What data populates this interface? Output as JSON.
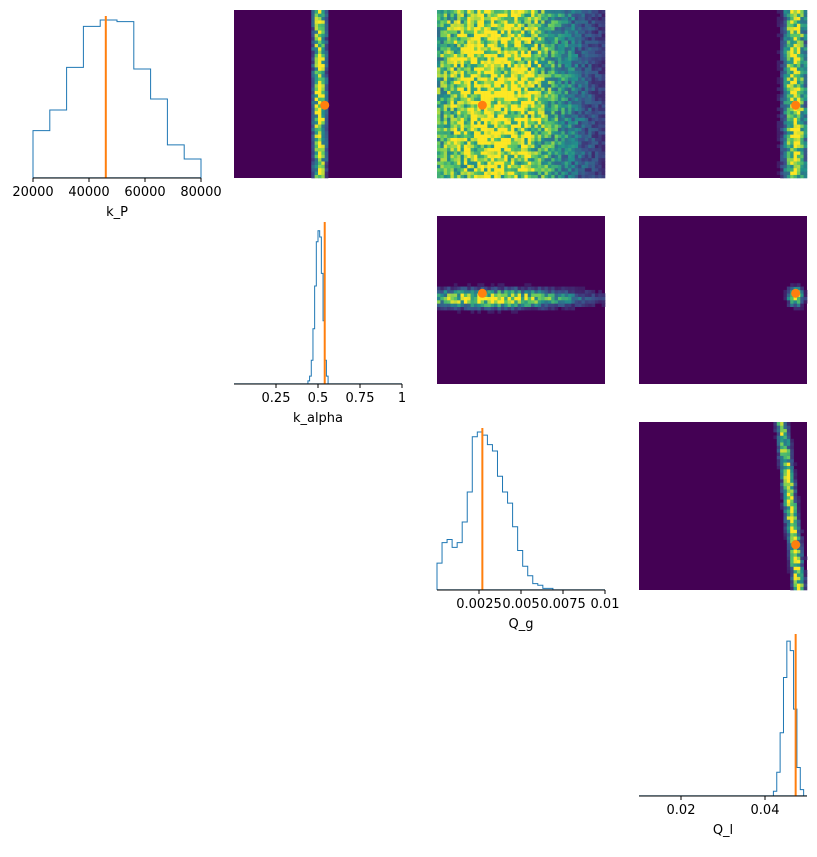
{
  "chart_data": {
    "type": "pairplot",
    "colors": {
      "hist_line": "#1f77b4",
      "truth": "#ff7f0e",
      "heat_bg": "#440154",
      "viridis": [
        "#440154",
        "#3b528b",
        "#21918c",
        "#5ec962",
        "#fde725"
      ]
    },
    "params": [
      {
        "name": "k_P",
        "xlabel": "k_P",
        "range": [
          20000,
          80000
        ],
        "ticks": [
          20000,
          40000,
          60000,
          80000
        ],
        "tick_labels": [
          "20000",
          "40000",
          "60000",
          "80000"
        ],
        "truth": 46000,
        "hist_edges": [
          20000,
          26000,
          32000,
          38000,
          44000,
          50000,
          56000,
          62000,
          68000,
          74000,
          80000
        ],
        "hist_counts": [
          0.3,
          0.43,
          0.7,
          0.96,
          1.0,
          0.99,
          0.69,
          0.5,
          0.21,
          0.12
        ]
      },
      {
        "name": "k_alpha",
        "xlabel": "k_alpha",
        "range": [
          0.0,
          1.0
        ],
        "ticks": [
          0.25,
          0.5,
          0.75,
          1.0
        ],
        "tick_labels": [
          "0.25",
          "0.5",
          "0.75",
          "1"
        ],
        "truth": 0.54,
        "hist_edges": [
          0.0,
          0.44,
          0.45,
          0.46,
          0.47,
          0.48,
          0.49,
          0.5,
          0.51,
          0.52,
          0.53,
          0.54,
          0.55,
          0.56,
          1.0
        ],
        "hist_counts": [
          0.0,
          0.02,
          0.05,
          0.15,
          0.35,
          0.62,
          0.9,
          0.97,
          0.93,
          0.7,
          0.4,
          0.15,
          0.05,
          0.0
        ]
      },
      {
        "name": "Q_g",
        "xlabel": "Q_g",
        "range": [
          0.0,
          0.01
        ],
        "ticks": [
          0.0025,
          0.005,
          0.0075,
          0.01
        ],
        "tick_labels": [
          "0.0025",
          "0.005",
          "0.0075",
          "0.01"
        ],
        "truth": 0.0027,
        "hist_edges": [
          0.0,
          0.0003,
          0.0006,
          0.0009,
          0.0012,
          0.0015,
          0.0018,
          0.0021,
          0.0024,
          0.0027,
          0.003,
          0.0033,
          0.0036,
          0.0039,
          0.0042,
          0.0045,
          0.0048,
          0.0051,
          0.0054,
          0.0057,
          0.006,
          0.0063,
          0.0066,
          0.0069,
          0.0072,
          0.0075,
          0.01
        ],
        "hist_counts": [
          0.17,
          0.3,
          0.32,
          0.27,
          0.3,
          0.43,
          0.62,
          0.97,
          1.0,
          0.98,
          0.92,
          0.88,
          0.72,
          0.62,
          0.55,
          0.4,
          0.25,
          0.15,
          0.09,
          0.04,
          0.03,
          0.01,
          0.01,
          0.0,
          0.0,
          0.0
        ]
      },
      {
        "name": "Q_l",
        "xlabel": "Q_l",
        "range": [
          0.01,
          0.05
        ],
        "ticks": [
          0.02,
          0.04
        ],
        "tick_labels": [
          "0.02",
          "0.04"
        ],
        "truth": 0.0473,
        "hist_edges": [
          0.01,
          0.042,
          0.0428,
          0.0436,
          0.0444,
          0.0452,
          0.046,
          0.0468,
          0.0476,
          0.0484,
          0.0492,
          0.05
        ],
        "hist_counts": [
          0.0,
          0.03,
          0.15,
          0.4,
          0.75,
          0.98,
          0.92,
          0.55,
          0.18,
          0.04,
          0.0
        ]
      }
    ],
    "pairs": [
      {
        "row": 0,
        "col": 1,
        "x_param": "k_alpha",
        "y_param": "k_P",
        "truth": [
          0.54,
          46000
        ],
        "ridge": "vertical",
        "center": [
          0.51,
          50000
        ],
        "spread": [
          0.025,
          60000
        ]
      },
      {
        "row": 0,
        "col": 2,
        "x_param": "Q_g",
        "y_param": "k_P",
        "truth": [
          0.0027,
          46000
        ],
        "ridge": "blob",
        "center": [
          0.0034,
          50000
        ],
        "spread": [
          0.0035,
          60000
        ]
      },
      {
        "row": 0,
        "col": 3,
        "x_param": "Q_l",
        "y_param": "k_P",
        "truth": [
          0.0473,
          46000
        ],
        "ridge": "vertical",
        "center": [
          0.0472,
          50000
        ],
        "spread": [
          0.0018,
          60000
        ]
      },
      {
        "row": 1,
        "col": 2,
        "x_param": "Q_g",
        "y_param": "k_alpha",
        "truth": [
          0.0027,
          0.54
        ],
        "ridge": "horizontal",
        "center": [
          0.0032,
          0.51
        ],
        "spread": [
          0.0035,
          0.035
        ]
      },
      {
        "row": 1,
        "col": 3,
        "x_param": "Q_l",
        "y_param": "k_alpha",
        "truth": [
          0.0473,
          0.54
        ],
        "ridge": "point",
        "center": [
          0.0473,
          0.52
        ],
        "spread": [
          0.0012,
          0.035
        ]
      },
      {
        "row": 2,
        "col": 3,
        "x_param": "Q_l",
        "y_param": "Q_g",
        "truth": [
          0.0473,
          0.0027
        ],
        "ridge": "diagonal",
        "center": [
          0.0465,
          0.004
        ],
        "spread": [
          0.0015,
          0.0032
        ]
      }
    ]
  }
}
